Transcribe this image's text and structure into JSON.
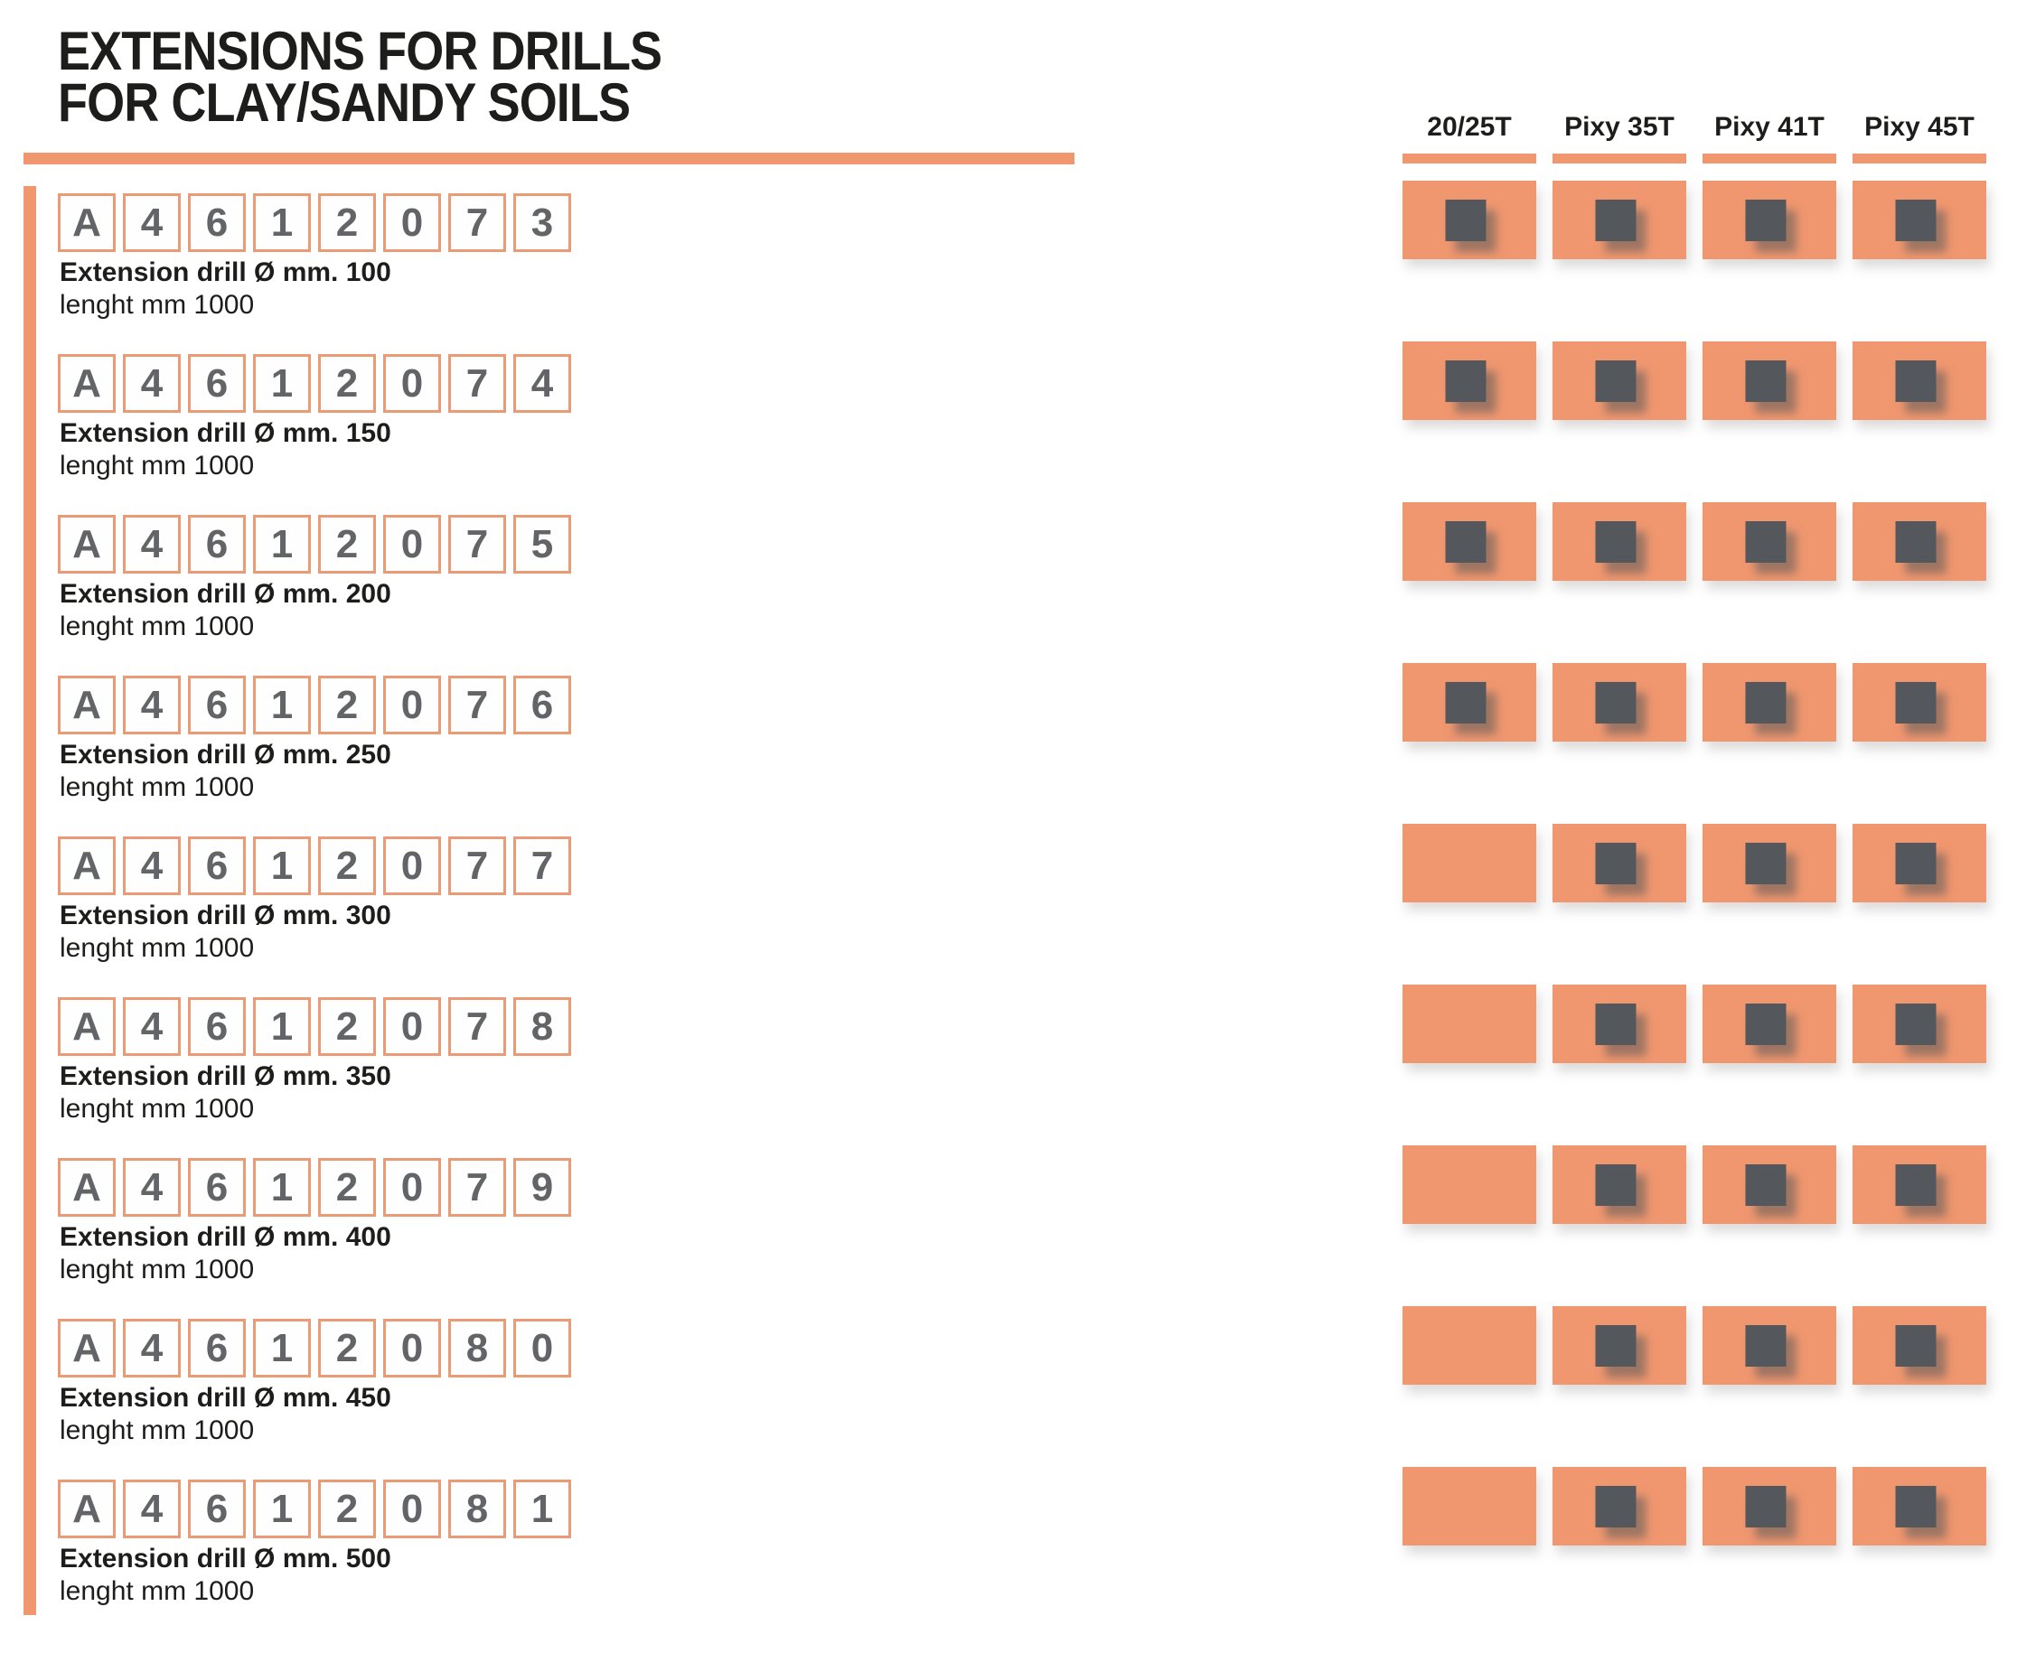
{
  "header": {
    "title_line1": "EXTENSIONS FOR DRILLS",
    "title_line2": "FOR CLAY/SANDY SOILS"
  },
  "columns": [
    {
      "label": "20/25T"
    },
    {
      "label": "Pixy 35T"
    },
    {
      "label": "Pixy 41T"
    },
    {
      "label": "Pixy 45T"
    }
  ],
  "products": [
    {
      "code": [
        "A",
        "4",
        "6",
        "1",
        "2",
        "0",
        "7",
        "3"
      ],
      "name": "Extension drill Ø mm. 100",
      "length": "lenght mm 1000",
      "compat": [
        true,
        true,
        true,
        true
      ]
    },
    {
      "code": [
        "A",
        "4",
        "6",
        "1",
        "2",
        "0",
        "7",
        "4"
      ],
      "name": "Extension drill Ø mm. 150",
      "length": "lenght mm 1000",
      "compat": [
        true,
        true,
        true,
        true
      ]
    },
    {
      "code": [
        "A",
        "4",
        "6",
        "1",
        "2",
        "0",
        "7",
        "5"
      ],
      "name": "Extension drill Ø mm. 200",
      "length": "lenght mm 1000",
      "compat": [
        true,
        true,
        true,
        true
      ]
    },
    {
      "code": [
        "A",
        "4",
        "6",
        "1",
        "2",
        "0",
        "7",
        "6"
      ],
      "name": "Extension drill Ø mm. 250",
      "length": "lenght mm 1000",
      "compat": [
        true,
        true,
        true,
        true
      ]
    },
    {
      "code": [
        "A",
        "4",
        "6",
        "1",
        "2",
        "0",
        "7",
        "7"
      ],
      "name": "Extension drill Ø mm. 300",
      "length": "lenght mm 1000",
      "compat": [
        false,
        true,
        true,
        true
      ]
    },
    {
      "code": [
        "A",
        "4",
        "6",
        "1",
        "2",
        "0",
        "7",
        "8"
      ],
      "name": "Extension drill Ø mm. 350",
      "length": "lenght mm 1000",
      "compat": [
        false,
        true,
        true,
        true
      ]
    },
    {
      "code": [
        "A",
        "4",
        "6",
        "1",
        "2",
        "0",
        "7",
        "9"
      ],
      "name": "Extension drill Ø mm. 400",
      "length": "lenght mm 1000",
      "compat": [
        false,
        true,
        true,
        true
      ]
    },
    {
      "code": [
        "A",
        "4",
        "6",
        "1",
        "2",
        "0",
        "8",
        "0"
      ],
      "name": "Extension drill Ø mm. 450",
      "length": "lenght mm 1000",
      "compat": [
        false,
        true,
        true,
        true
      ]
    },
    {
      "code": [
        "A",
        "4",
        "6",
        "1",
        "2",
        "0",
        "8",
        "1"
      ],
      "name": "Extension drill Ø mm. 500",
      "length": "lenght mm 1000",
      "compat": [
        false,
        true,
        true,
        true
      ]
    }
  ],
  "colors": {
    "accent": "#F0976F",
    "accent_border": "#EA9B75",
    "square": "#54575C",
    "ink": "#1D1D1B",
    "code_text": "#636467"
  }
}
